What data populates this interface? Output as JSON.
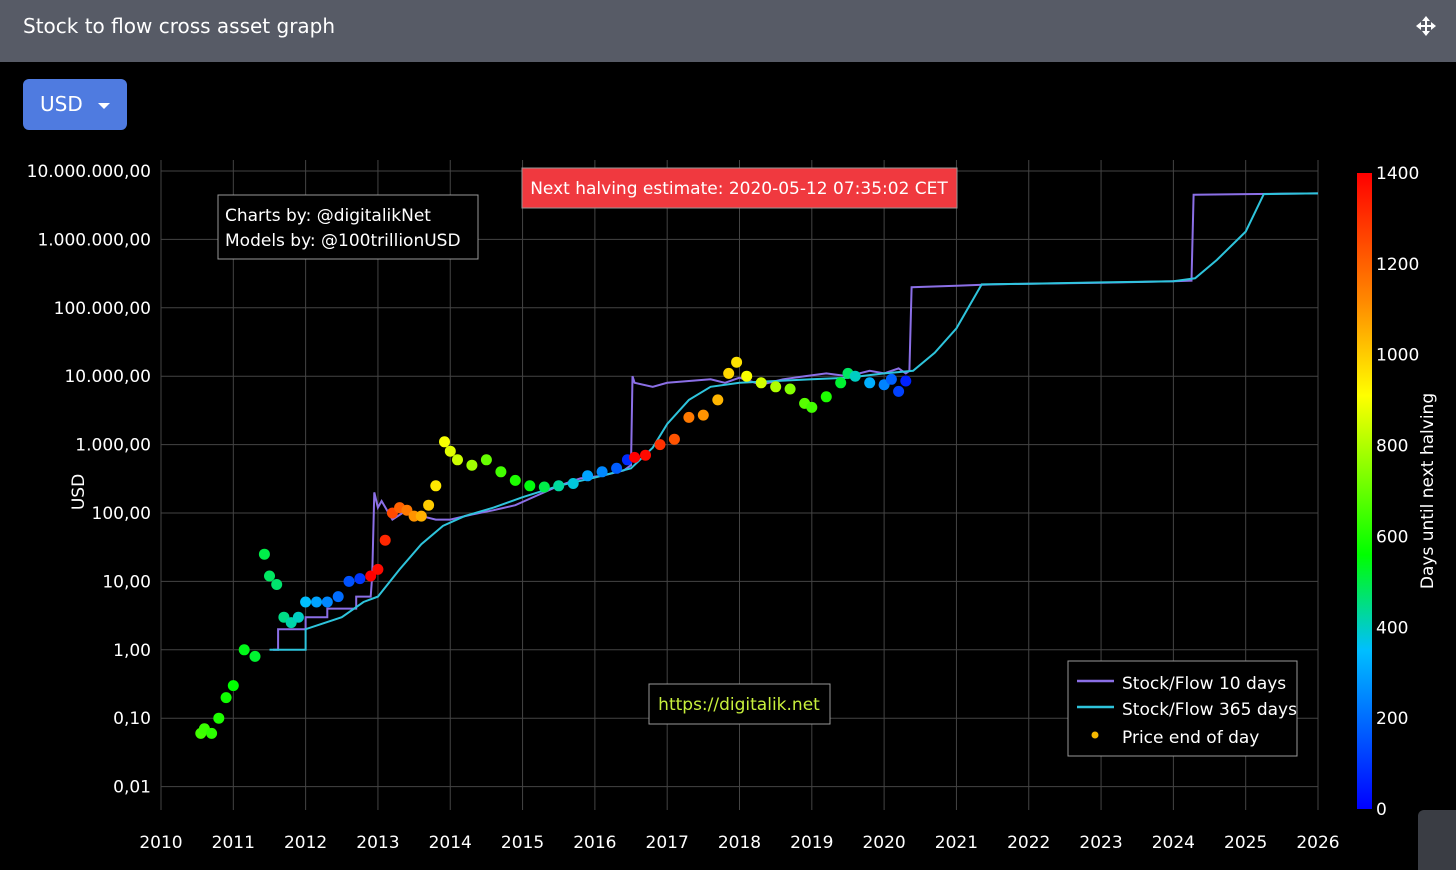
{
  "header": {
    "title": "Stock to flow cross asset graph"
  },
  "currency": {
    "selected": "USD"
  },
  "chart_data": {
    "type": "scatter",
    "ylabel": "USD",
    "yscale": "log",
    "ylim": [
      0.005,
      10000000
    ],
    "xlim": [
      2010,
      2026
    ],
    "y_ticks": [
      {
        "value": 10000000,
        "label": "10.000.000,00"
      },
      {
        "value": 1000000,
        "label": "1.000.000,00"
      },
      {
        "value": 100000,
        "label": "100.000,00"
      },
      {
        "value": 10000,
        "label": "10.000,00"
      },
      {
        "value": 1000,
        "label": "1.000,00"
      },
      {
        "value": 100,
        "label": "100,00"
      },
      {
        "value": 10,
        "label": "10,00"
      },
      {
        "value": 1,
        "label": "1,00"
      },
      {
        "value": 0.1,
        "label": "0,10"
      },
      {
        "value": 0.01,
        "label": "0,01"
      }
    ],
    "x_ticks": [
      "2010",
      "2011",
      "2012",
      "2013",
      "2014",
      "2015",
      "2016",
      "2017",
      "2018",
      "2019",
      "2020",
      "2021",
      "2022",
      "2023",
      "2024",
      "2025",
      "2026"
    ],
    "annotations": {
      "credits_line1": "Charts by: @digitalikNet",
      "credits_line2": "Models by: @100trillionUSD",
      "halving": "Next halving estimate: 2020-05-12 07:35:02 CET",
      "website": "https://digitalik.net"
    },
    "colorbar": {
      "title": "Days until next halving",
      "range": [
        0,
        1400
      ],
      "ticks": [
        "1400",
        "1200",
        "1000",
        "800",
        "600",
        "400",
        "200",
        "0"
      ]
    },
    "legend": {
      "position": "bottom-right",
      "items": [
        {
          "label": "Stock/Flow 10 days",
          "color": "#8b6fe6"
        },
        {
          "label": "Stock/Flow 365 days",
          "color": "#2ec4dc"
        },
        {
          "label": "Price end of day",
          "color": "#f5b800"
        }
      ]
    },
    "series": [
      {
        "name": "Stock/Flow 10 days",
        "x": [
          2011.55,
          2011.62,
          2011.62,
          2012.0,
          2012.0,
          2012.3,
          2012.3,
          2012.7,
          2012.7,
          2012.9,
          2012.92,
          2012.95,
          2013.0,
          2013.05,
          2013.2,
          2013.4,
          2013.6,
          2013.8,
          2014.0,
          2014.3,
          2014.6,
          2014.9,
          2015.2,
          2015.5,
          2015.8,
          2016.1,
          2016.4,
          2016.5,
          2016.52,
          2016.55,
          2016.8,
          2017.0,
          2017.3,
          2017.6,
          2017.8,
          2018.0,
          2018.3,
          2018.6,
          2018.9,
          2019.2,
          2019.5,
          2019.8,
          2020.0,
          2020.2,
          2020.3,
          2020.35,
          2020.38,
          2021.0,
          2021.5,
          2022.0,
          2023.0,
          2024.0,
          2024.25,
          2024.28,
          2025.0,
          2026.0
        ],
        "y": [
          1,
          1,
          2,
          2,
          3,
          3,
          4,
          4,
          6,
          6,
          12,
          200,
          120,
          150,
          80,
          110,
          90,
          80,
          80,
          95,
          110,
          130,
          180,
          250,
          320,
          350,
          420,
          500,
          10000,
          8000,
          7000,
          8000,
          8500,
          9000,
          8000,
          9500,
          7500,
          9000,
          10000,
          11000,
          10000,
          12000,
          11000,
          13000,
          11000,
          12000,
          200000,
          210000,
          220000,
          225000,
          232000,
          245000,
          250000,
          4500000,
          4600000,
          4700000
        ]
      },
      {
        "name": "Stock/Flow 365 days",
        "x": [
          2011.5,
          2012.0,
          2012.0,
          2012.5,
          2012.8,
          2013.0,
          2013.3,
          2013.6,
          2013.9,
          2014.2,
          2014.6,
          2015.0,
          2015.5,
          2016.0,
          2016.5,
          2016.8,
          2017.0,
          2017.3,
          2017.6,
          2018.0,
          2018.5,
          2019.0,
          2019.5,
          2020.0,
          2020.4,
          2020.7,
          2021.0,
          2021.35,
          2022.0,
          2023.0,
          2024.0,
          2024.3,
          2024.6,
          2025.0,
          2025.25,
          2025.5,
          2026.0
        ],
        "y": [
          1,
          1,
          2,
          3,
          5,
          6,
          15,
          35,
          65,
          90,
          120,
          170,
          250,
          330,
          450,
          900,
          2000,
          4500,
          7000,
          8000,
          8500,
          9000,
          9500,
          11000,
          12000,
          22000,
          50000,
          220000,
          225000,
          235000,
          245000,
          270000,
          500000,
          1300000,
          4600000,
          4650000,
          4700000
        ]
      },
      {
        "name": "Price end of day",
        "x": [
          2010.55,
          2010.6,
          2010.7,
          2010.8,
          2010.9,
          2011.0,
          2011.15,
          2011.3,
          2011.43,
          2011.5,
          2011.6,
          2011.7,
          2011.8,
          2011.9,
          2012.0,
          2012.15,
          2012.3,
          2012.45,
          2012.6,
          2012.75,
          2012.9,
          2013.0,
          2013.1,
          2013.2,
          2013.3,
          2013.4,
          2013.5,
          2013.6,
          2013.7,
          2013.8,
          2013.92,
          2014.0,
          2014.1,
          2014.3,
          2014.5,
          2014.7,
          2014.9,
          2015.1,
          2015.3,
          2015.5,
          2015.7,
          2015.9,
          2016.1,
          2016.3,
          2016.45,
          2016.55,
          2016.7,
          2016.9,
          2017.1,
          2017.3,
          2017.5,
          2017.7,
          2017.85,
          2017.96,
          2018.1,
          2018.3,
          2018.5,
          2018.7,
          2018.9,
          2019.0,
          2019.2,
          2019.4,
          2019.5,
          2019.6,
          2019.8,
          2020.0,
          2020.1,
          2020.2,
          2020.3
        ],
        "y": [
          0.06,
          0.07,
          0.06,
          0.1,
          0.2,
          0.3,
          1.0,
          0.8,
          25,
          12,
          9,
          3,
          2.5,
          3,
          5,
          5,
          5,
          6,
          10,
          11,
          12,
          15,
          40,
          100,
          120,
          110,
          90,
          90,
          130,
          250,
          1100,
          800,
          600,
          500,
          600,
          400,
          300,
          250,
          240,
          250,
          270,
          350,
          400,
          450,
          600,
          650,
          700,
          1000,
          1200,
          2500,
          2700,
          4500,
          11000,
          16000,
          10000,
          8000,
          7000,
          6500,
          4000,
          3500,
          5000,
          8000,
          11000,
          10000,
          8000,
          7500,
          9000,
          6000,
          8500
        ],
        "color_value": [
          650,
          640,
          620,
          600,
          580,
          560,
          540,
          520,
          500,
          480,
          470,
          450,
          420,
          400,
          350,
          300,
          250,
          200,
          150,
          100,
          1400,
          1380,
          1320,
          1250,
          1200,
          1150,
          1100,
          1050,
          1000,
          950,
          900,
          870,
          840,
          780,
          700,
          650,
          600,
          550,
          500,
          430,
          380,
          300,
          250,
          170,
          80,
          1430,
          1380,
          1300,
          1230,
          1150,
          1100,
          1040,
          980,
          960,
          900,
          850,
          800,
          740,
          680,
          650,
          600,
          520,
          480,
          400,
          320,
          240,
          180,
          120,
          60
        ]
      }
    ]
  }
}
